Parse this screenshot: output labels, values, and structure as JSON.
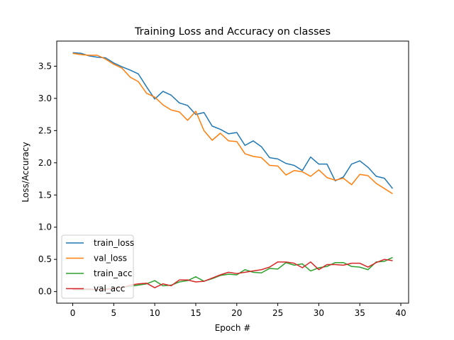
{
  "chart_data": {
    "type": "line",
    "title": "Training Loss and Accuracy on classes",
    "xlabel": "Epoch #",
    "ylabel": "Loss/Accuracy",
    "xlim": [
      -1.95,
      40.95
    ],
    "ylim": [
      -0.18,
      3.89
    ],
    "xticks": [
      0,
      5,
      10,
      15,
      20,
      25,
      30,
      35,
      40
    ],
    "yticks": [
      0.0,
      0.5,
      1.0,
      1.5,
      2.0,
      2.5,
      3.0,
      3.5
    ],
    "grid": false,
    "legend_position": "lower-left",
    "x": [
      0,
      1,
      2,
      3,
      4,
      5,
      6,
      7,
      8,
      9,
      10,
      11,
      12,
      13,
      14,
      15,
      16,
      17,
      18,
      19,
      20,
      21,
      22,
      23,
      24,
      25,
      26,
      27,
      28,
      29,
      30,
      31,
      32,
      33,
      34,
      35,
      36,
      37,
      38,
      39
    ],
    "series": [
      {
        "name": "train_loss",
        "color": "#1f77b4",
        "values": [
          3.71,
          3.7,
          3.66,
          3.64,
          3.63,
          3.55,
          3.49,
          3.44,
          3.38,
          3.18,
          2.99,
          3.11,
          3.05,
          2.93,
          2.89,
          2.75,
          2.78,
          2.57,
          2.52,
          2.45,
          2.47,
          2.27,
          2.34,
          2.25,
          2.08,
          2.06,
          1.99,
          1.96,
          1.88,
          2.09,
          1.98,
          1.98,
          1.72,
          1.78,
          1.98,
          2.03,
          1.93,
          1.79,
          1.76,
          1.6
        ]
      },
      {
        "name": "val_loss",
        "color": "#ff7f0e",
        "values": [
          3.7,
          3.68,
          3.67,
          3.67,
          3.61,
          3.53,
          3.47,
          3.33,
          3.26,
          3.08,
          3.02,
          2.9,
          2.82,
          2.79,
          2.66,
          2.8,
          2.5,
          2.35,
          2.46,
          2.34,
          2.33,
          2.14,
          2.1,
          2.08,
          1.96,
          1.95,
          1.81,
          1.88,
          1.86,
          1.79,
          1.89,
          1.77,
          1.73,
          1.76,
          1.66,
          1.82,
          1.8,
          1.68,
          1.6,
          1.52
        ]
      },
      {
        "name": "train_acc",
        "color": "#2ca02c",
        "values": [
          0.03,
          0.03,
          0.03,
          0.03,
          0.04,
          0.05,
          0.07,
          0.08,
          0.1,
          0.12,
          0.17,
          0.09,
          0.1,
          0.15,
          0.17,
          0.23,
          0.16,
          0.2,
          0.25,
          0.27,
          0.26,
          0.34,
          0.3,
          0.29,
          0.36,
          0.35,
          0.45,
          0.41,
          0.43,
          0.32,
          0.37,
          0.39,
          0.45,
          0.45,
          0.39,
          0.38,
          0.34,
          0.46,
          0.47,
          0.53
        ]
      },
      {
        "name": "val_acc",
        "color": "#d62728",
        "values": [
          0.03,
          0.04,
          0.04,
          0.03,
          0.03,
          0.05,
          0.06,
          0.1,
          0.12,
          0.13,
          0.06,
          0.12,
          0.09,
          0.18,
          0.18,
          0.15,
          0.16,
          0.21,
          0.26,
          0.3,
          0.28,
          0.3,
          0.32,
          0.34,
          0.38,
          0.46,
          0.46,
          0.44,
          0.37,
          0.46,
          0.34,
          0.42,
          0.42,
          0.41,
          0.44,
          0.44,
          0.38,
          0.45,
          0.5,
          0.48
        ]
      }
    ]
  }
}
